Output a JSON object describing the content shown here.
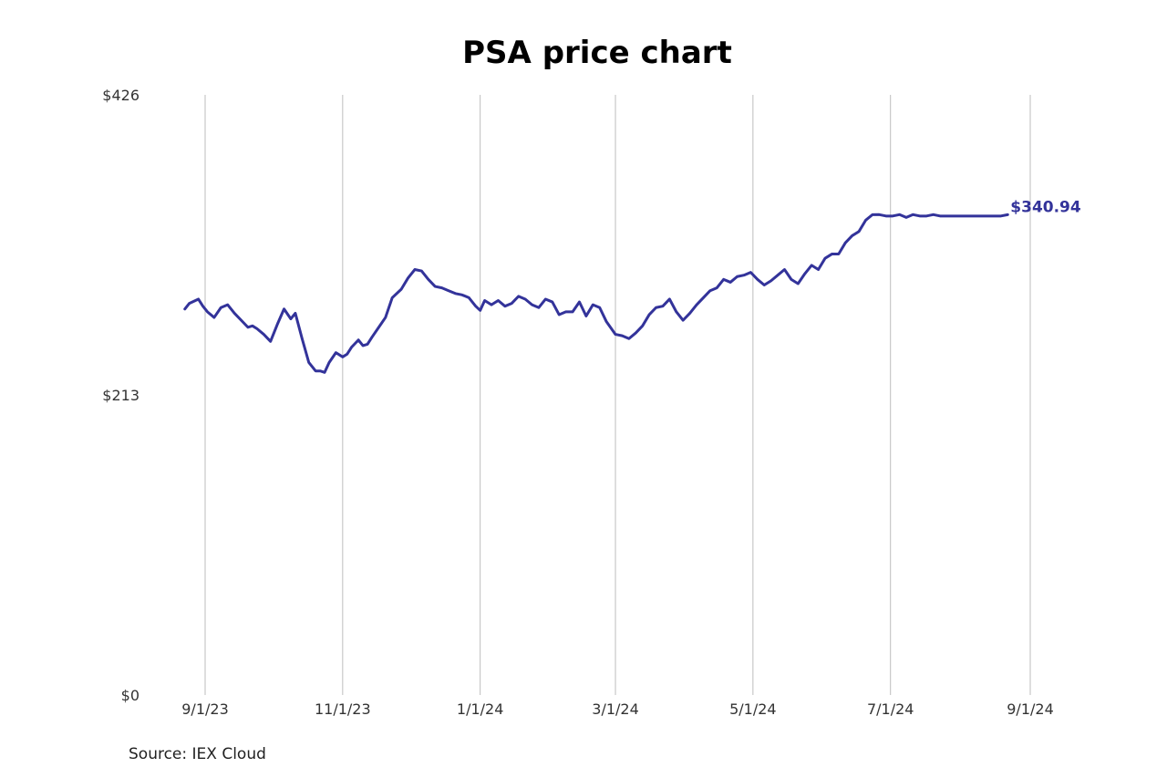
{
  "chart_data": {
    "type": "line",
    "title": "PSA price chart",
    "xlabel": "",
    "ylabel": "",
    "x_range": [
      "2023-08-23",
      "2024-09-01"
    ],
    "ylim": [
      0,
      426
    ],
    "y_ticks": [
      {
        "value": 0,
        "label": "$0"
      },
      {
        "value": 213,
        "label": "$213"
      },
      {
        "value": 426,
        "label": "$426"
      }
    ],
    "x_ticks": [
      {
        "date": "2023-09-01",
        "label": "9/1/23"
      },
      {
        "date": "2023-11-01",
        "label": "11/1/23"
      },
      {
        "date": "2024-01-01",
        "label": "1/1/24"
      },
      {
        "date": "2024-03-01",
        "label": "3/1/24"
      },
      {
        "date": "2024-05-01",
        "label": "5/1/24"
      },
      {
        "date": "2024-07-01",
        "label": "7/1/24"
      },
      {
        "date": "2024-09-01",
        "label": "9/1/24"
      }
    ],
    "vertical_grid": true,
    "horizontal_grid": false,
    "line_color": "#33339a",
    "last_value_label": "$340.94",
    "series": [
      {
        "x": [
          "2023-08-23",
          "2023-08-25",
          "2023-08-29",
          "2023-08-31",
          "2023-09-02",
          "2023-09-05",
          "2023-09-08",
          "2023-09-11",
          "2023-09-14",
          "2023-09-17",
          "2023-09-20",
          "2023-09-22",
          "2023-09-24",
          "2023-09-27",
          "2023-09-30",
          "2023-10-03",
          "2023-10-06",
          "2023-10-09",
          "2023-10-11",
          "2023-10-14",
          "2023-10-17",
          "2023-10-20",
          "2023-10-22",
          "2023-10-24",
          "2023-10-26",
          "2023-10-29",
          "2023-11-01",
          "2023-11-03",
          "2023-11-05",
          "2023-11-08",
          "2023-11-10",
          "2023-11-12",
          "2023-11-14",
          "2023-11-17",
          "2023-11-20",
          "2023-11-23",
          "2023-11-27",
          "2023-11-30",
          "2023-12-03",
          "2023-12-06",
          "2023-12-09",
          "2023-12-12",
          "2023-12-15",
          "2023-12-18",
          "2023-12-21",
          "2023-12-24",
          "2023-12-27",
          "2023-12-30",
          "2024-01-01",
          "2024-01-03",
          "2024-01-06",
          "2024-01-09",
          "2024-01-12",
          "2024-01-15",
          "2024-01-18",
          "2024-01-21",
          "2024-01-24",
          "2024-01-27",
          "2024-01-30",
          "2024-02-02",
          "2024-02-05",
          "2024-02-08",
          "2024-02-11",
          "2024-02-14",
          "2024-02-17",
          "2024-02-20",
          "2024-02-23",
          "2024-02-26",
          "2024-03-01",
          "2024-03-04",
          "2024-03-07",
          "2024-03-10",
          "2024-03-13",
          "2024-03-16",
          "2024-03-19",
          "2024-03-22",
          "2024-03-25",
          "2024-03-28",
          "2024-03-31",
          "2024-04-03",
          "2024-04-06",
          "2024-04-09",
          "2024-04-12",
          "2024-04-15",
          "2024-04-18",
          "2024-04-21",
          "2024-04-24",
          "2024-04-27",
          "2024-04-30",
          "2024-05-03",
          "2024-05-06",
          "2024-05-09",
          "2024-05-12",
          "2024-05-15",
          "2024-05-18",
          "2024-05-21",
          "2024-05-24",
          "2024-05-27",
          "2024-05-30",
          "2024-06-02",
          "2024-06-05",
          "2024-06-08",
          "2024-06-11",
          "2024-06-14",
          "2024-06-17",
          "2024-06-20",
          "2024-06-23",
          "2024-06-26",
          "2024-06-29",
          "2024-07-02",
          "2024-07-05",
          "2024-07-08",
          "2024-07-11",
          "2024-07-14",
          "2024-07-17",
          "2024-07-20",
          "2024-07-23",
          "2024-07-26",
          "2024-07-29",
          "2024-08-01",
          "2024-08-04",
          "2024-08-07",
          "2024-08-10",
          "2024-08-13",
          "2024-08-16",
          "2024-08-19",
          "2024-08-22"
        ],
        "values": [
          274,
          278,
          281,
          276,
          272,
          268,
          275,
          277,
          271,
          266,
          261,
          262,
          260,
          256,
          251,
          263,
          274,
          267,
          271,
          253,
          236,
          230,
          230,
          229,
          236,
          243,
          240,
          242,
          247,
          252,
          248,
          249,
          254,
          261,
          268,
          282,
          288,
          296,
          302,
          301,
          295,
          290,
          289,
          287,
          285,
          284,
          282,
          276,
          273,
          280,
          277,
          280,
          276,
          278,
          283,
          281,
          277,
          275,
          281,
          279,
          270,
          272,
          272,
          279,
          269,
          277,
          275,
          265,
          256,
          255,
          253,
          257,
          262,
          270,
          275,
          276,
          281,
          272,
          266,
          271,
          277,
          282,
          287,
          289,
          295,
          293,
          297,
          298,
          300,
          295,
          291,
          294,
          298,
          302,
          295,
          292,
          299,
          305,
          302,
          310,
          313,
          313,
          321,
          326,
          329,
          337,
          340.94,
          341,
          340,
          340,
          341,
          339,
          341,
          340,
          340,
          341,
          340,
          340,
          340,
          340,
          340,
          340,
          340,
          340,
          340,
          340,
          340.94
        ],
        "line_color": "#33339a"
      }
    ]
  },
  "source_label": "Source: IEX Cloud"
}
